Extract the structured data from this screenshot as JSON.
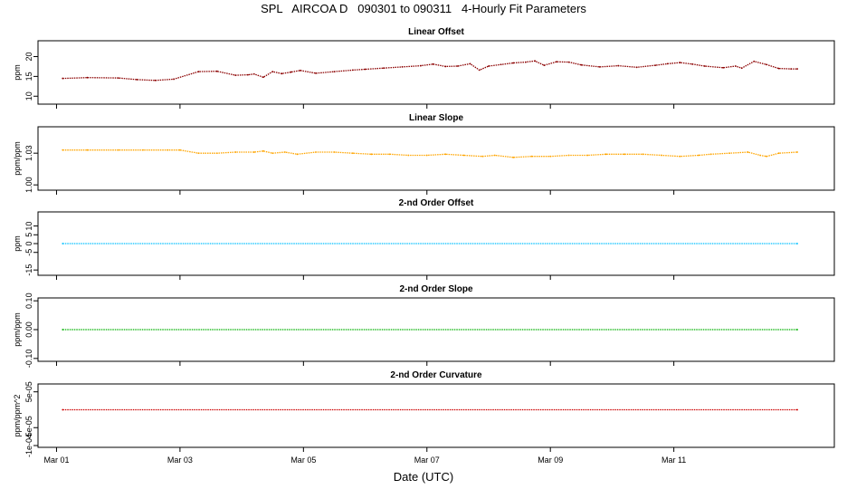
{
  "title": "SPL   AIRCOA D   090301 to 090311   4-Hourly Fit Parameters",
  "xlabel": "Date (UTC)",
  "chart_data": [
    {
      "type": "line",
      "title": "Linear Offset",
      "ylabel": "ppm",
      "ylim": [
        8,
        24
      ],
      "yticks": [
        10,
        15,
        20
      ],
      "ytick_labels": [
        "10",
        "15",
        "20"
      ],
      "color": "#8b0000",
      "grid": false,
      "series": [
        {
          "x": [
            0.1,
            0.5,
            1.0,
            1.3,
            1.6,
            1.9,
            2.3,
            2.6,
            2.9,
            3.1,
            3.2,
            3.35,
            3.5,
            3.65,
            3.8,
            3.95,
            4.2,
            4.5,
            4.8,
            5.0,
            5.3,
            5.6,
            5.9,
            6.1,
            6.3,
            6.5,
            6.7,
            6.85,
            7.0,
            7.2,
            7.4,
            7.6,
            7.75,
            7.9,
            8.1,
            8.3,
            8.5,
            8.8,
            9.1,
            9.4,
            9.7,
            9.9,
            10.1,
            10.3,
            10.5,
            10.8,
            11.0,
            11.1,
            11.3,
            11.5,
            11.7,
            11.9,
            12.0
          ],
          "y": [
            14.5,
            14.7,
            14.6,
            14.2,
            14.0,
            14.3,
            16.2,
            16.3,
            15.3,
            15.4,
            15.6,
            14.8,
            16.2,
            15.7,
            16.1,
            16.5,
            15.8,
            16.2,
            16.6,
            16.8,
            17.1,
            17.4,
            17.7,
            18.1,
            17.5,
            17.6,
            18.2,
            16.6,
            17.6,
            18.0,
            18.4,
            18.6,
            18.9,
            17.8,
            18.7,
            18.6,
            17.9,
            17.4,
            17.7,
            17.3,
            17.8,
            18.2,
            18.5,
            18.1,
            17.6,
            17.2,
            17.6,
            17.1,
            18.8,
            18.0,
            17.0,
            16.9,
            16.9
          ]
        }
      ]
    },
    {
      "type": "line",
      "title": "Linear Slope",
      "ylabel": "ppm/ppm",
      "ylim": [
        0.995,
        1.055
      ],
      "yticks": [
        1.0,
        1.03
      ],
      "ytick_labels": [
        "1.00",
        "1.03"
      ],
      "color": "#ffa500",
      "grid": false,
      "series": [
        {
          "x": [
            0.1,
            0.5,
            1.0,
            1.4,
            1.8,
            2.0,
            2.3,
            2.6,
            2.9,
            3.2,
            3.35,
            3.5,
            3.7,
            3.9,
            4.2,
            4.5,
            4.8,
            5.1,
            5.4,
            5.7,
            6.0,
            6.3,
            6.6,
            6.9,
            7.1,
            7.4,
            7.7,
            8.0,
            8.3,
            8.6,
            8.9,
            9.2,
            9.5,
            9.8,
            10.1,
            10.4,
            10.6,
            10.9,
            11.2,
            11.4,
            11.5,
            11.7,
            12.0
          ],
          "y": [
            1.033,
            1.033,
            1.033,
            1.033,
            1.033,
            1.033,
            1.03,
            1.03,
            1.031,
            1.031,
            1.032,
            1.03,
            1.031,
            1.029,
            1.031,
            1.031,
            1.03,
            1.029,
            1.029,
            1.028,
            1.028,
            1.029,
            1.028,
            1.027,
            1.028,
            1.026,
            1.027,
            1.027,
            1.028,
            1.028,
            1.029,
            1.029,
            1.029,
            1.028,
            1.027,
            1.028,
            1.029,
            1.03,
            1.031,
            1.028,
            1.027,
            1.03,
            1.031
          ]
        }
      ]
    },
    {
      "type": "line",
      "title": "2-nd Order Offset",
      "ylabel": "ppm",
      "ylim": [
        -18,
        18
      ],
      "yticks": [
        -15,
        -5,
        0,
        5,
        10
      ],
      "ytick_labels": [
        "-15",
        "-5",
        "0",
        "5",
        "10"
      ],
      "color": "#00bfff",
      "grid": false,
      "series": [
        {
          "x": [
            0.1,
            12.0
          ],
          "y": [
            0,
            0
          ]
        }
      ]
    },
    {
      "type": "line",
      "title": "2-nd Order Slope",
      "ylabel": "ppm/ppm",
      "ylim": [
        -0.11,
        0.11
      ],
      "yticks": [
        -0.1,
        0.0,
        0.1
      ],
      "ytick_labels": [
        "-0.10",
        "0.00",
        "0.10"
      ],
      "color": "#00b000",
      "grid": false,
      "series": [
        {
          "x": [
            0.1,
            12.0
          ],
          "y": [
            0,
            0
          ]
        }
      ]
    },
    {
      "type": "line",
      "title": "2-nd Order Curvature",
      "ylabel": "ppm/ppm^2",
      "ylim": [
        -0.000105,
        7.2e-05
      ],
      "yticks": [
        -0.0001,
        -5e-05,
        5e-05
      ],
      "ytick_labels": [
        "-1e-04",
        "-5e-05",
        "5e-05"
      ],
      "color": "#cc0000",
      "grid": false,
      "series": [
        {
          "x": [
            0.1,
            12.0
          ],
          "y": [
            0,
            0
          ]
        }
      ]
    }
  ],
  "x_axis": {
    "unit": "days since Mar 01",
    "xlim": [
      -0.3,
      12.6
    ],
    "ticks": [
      0,
      2,
      4,
      6,
      8,
      10
    ],
    "tick_labels": [
      "Mar 01",
      "Mar 03",
      "Mar 05",
      "Mar 07",
      "Mar 09",
      "Mar 11"
    ]
  }
}
